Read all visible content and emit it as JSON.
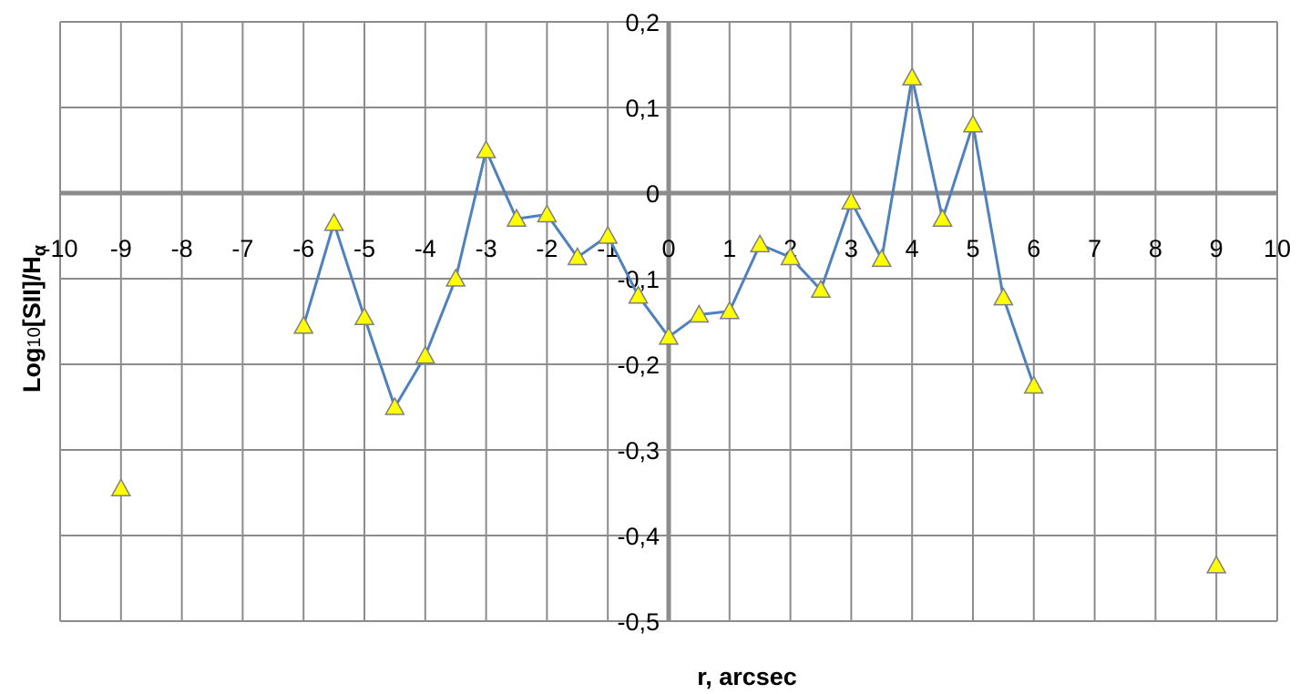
{
  "chart_data": {
    "type": "scatter",
    "xlabel": "r, arcsec",
    "ylabel_main": "Log",
    "ylabel_sub": "10",
    "ylabel_rest": "[SII]/H",
    "ylabel_alpha": "α",
    "xlim": [
      -10,
      10
    ],
    "ylim": [
      -0.5,
      0.2
    ],
    "x_ticks": [
      -10,
      -9,
      -8,
      -7,
      -6,
      -5,
      -4,
      -3,
      -2,
      -1,
      0,
      1,
      2,
      3,
      4,
      5,
      6,
      7,
      8,
      9,
      10
    ],
    "x_tick_labels": [
      "-10",
      "-9",
      "-8",
      "-7",
      "-6",
      "-5",
      "-4",
      "-3",
      "-2",
      "-1",
      "0",
      "1",
      "2",
      "3",
      "4",
      "5",
      "6",
      "7",
      "8",
      "9",
      "10"
    ],
    "y_ticks": [
      0.2,
      0.1,
      0,
      -0.1,
      -0.2,
      -0.3,
      -0.4,
      -0.5
    ],
    "y_tick_labels": [
      "0,2",
      "0,1",
      "0",
      "-0,1",
      "-0,2",
      "-0,3",
      "-0,4",
      "-0,5"
    ],
    "grid": true,
    "line_color": "#4f81bd",
    "marker_color": "#ffff00",
    "marker_shape": "triangle",
    "isolated_points": [
      {
        "x": -9,
        "y": -0.345
      },
      {
        "x": 9,
        "y": -0.435
      }
    ],
    "series": [
      {
        "x": [
          -6,
          -5.5,
          -5,
          -4.5,
          -4,
          -3.5,
          -3,
          -2.5,
          -2,
          -1.5,
          -1,
          -0.5,
          0,
          0.5,
          1,
          1.5,
          2,
          2.5,
          3,
          3.5,
          4,
          4.5,
          5,
          5.5,
          6
        ],
        "values": [
          -0.155,
          -0.035,
          -0.145,
          -0.25,
          -0.19,
          -0.1,
          0.05,
          -0.03,
          -0.025,
          -0.075,
          -0.05,
          -0.12,
          -0.168,
          -0.142,
          -0.138,
          -0.06,
          -0.075,
          -0.113,
          -0.01,
          -0.077,
          0.135,
          -0.03,
          0.08,
          -0.122,
          -0.225
        ]
      }
    ]
  }
}
